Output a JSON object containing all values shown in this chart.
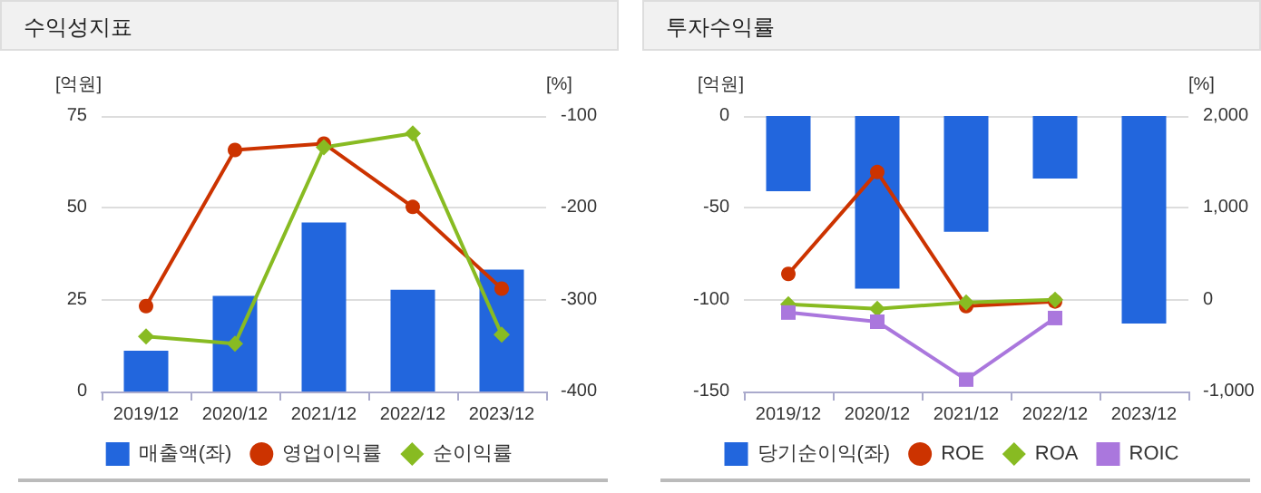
{
  "chart_data": [
    {
      "type": "bar",
      "title": "수익성지표",
      "ylabel": "[억원]",
      "y2label": "[%]",
      "categories": [
        "2019/12",
        "2020/12",
        "2021/12",
        "2022/12",
        "2023/12"
      ],
      "ylim": [
        0,
        75
      ],
      "yticks": [
        0,
        25,
        50,
        75
      ],
      "y2lim": [
        -400,
        -100
      ],
      "y2ticks": [
        -400,
        -300,
        -200,
        -100
      ],
      "grid": "y",
      "legend": "bottom",
      "series": [
        {
          "name": "매출액(좌)",
          "color": "#2266dd",
          "values": [
            11.1,
            26,
            46,
            27.7,
            33.2
          ]
        },
        {
          "name": "영업이익률",
          "type": "line",
          "axis": "y2",
          "marker": "circle",
          "color": "#cc3300",
          "values": [
            -307,
            -137,
            -130,
            -199,
            -288
          ]
        },
        {
          "name": "순이익률",
          "type": "line",
          "axis": "y2",
          "marker": "diamond",
          "color": "#88bb22",
          "values": [
            -340,
            -348,
            -134,
            -119,
            -338
          ]
        }
      ]
    },
    {
      "type": "bar",
      "title": "투자수익률",
      "ylabel": "[억원]",
      "y2label": "[%]",
      "categories": [
        "2019/12",
        "2020/12",
        "2021/12",
        "2022/12",
        "2023/12"
      ],
      "ylim": [
        -150,
        0
      ],
      "yticks": [
        -150,
        -100,
        -50,
        0
      ],
      "y2lim": [
        -1000,
        2000
      ],
      "y2ticks": [
        {
          "value": -1000,
          "label": "-1,000"
        },
        0,
        {
          "value": 1000,
          "label": "1,000"
        },
        {
          "value": 2000,
          "label": "2,000"
        }
      ],
      "grid": "y",
      "legend": "bottom",
      "series": [
        {
          "name": "당기순이익(좌)",
          "color": "#2266dd",
          "values": [
            -41,
            -94,
            -63,
            -34,
            -113
          ]
        },
        {
          "name": "ROE",
          "type": "line",
          "axis": "y2",
          "marker": "circle",
          "color": "#cc3300",
          "values": [
            280,
            1390,
            -70,
            -20,
            null
          ]
        },
        {
          "name": "ROA",
          "type": "line",
          "axis": "y2",
          "marker": "diamond",
          "color": "#88bb22",
          "values": [
            -50,
            -100,
            -30,
            0,
            null
          ]
        },
        {
          "name": "ROIC",
          "type": "line",
          "axis": "y2",
          "marker": "square",
          "color": "#aa77dd",
          "values": [
            -140,
            -240,
            -870,
            -200,
            null
          ]
        }
      ]
    }
  ]
}
